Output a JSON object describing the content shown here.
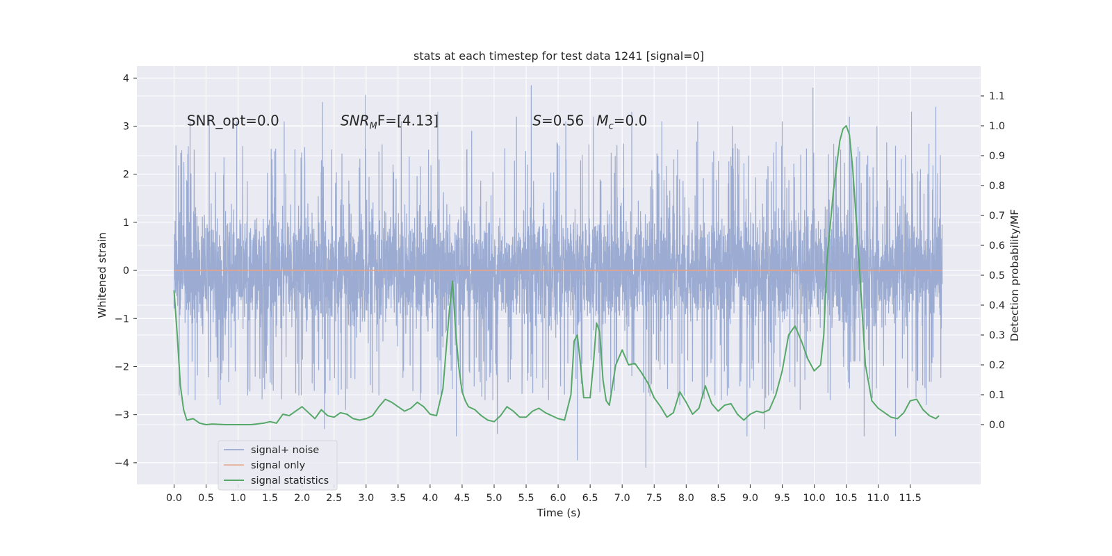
{
  "chart_data": {
    "type": "line",
    "title": "stats at each timestep for test data 1241 [signal=0]",
    "xlabel": "Time (s)",
    "ylabel": "Whitened strain",
    "ylabel_right": "Detection probability/MF",
    "xlim": [
      -0.58,
      12.6
    ],
    "ylim": [
      -4.45,
      4.25
    ],
    "ylim_right": [
      -0.2,
      1.2
    ],
    "x_ticks": [
      0.0,
      0.5,
      1.0,
      1.5,
      2.0,
      2.5,
      3.0,
      3.5,
      4.0,
      4.5,
      5.0,
      5.5,
      6.0,
      6.5,
      7.0,
      7.5,
      8.0,
      8.5,
      9.0,
      9.5,
      10.0,
      10.5,
      11.0,
      11.5
    ],
    "x_tick_labels": [
      "0.0",
      "0.5",
      "1.0",
      "1.5",
      "2.0",
      "2.5",
      "3.0",
      "3.5",
      "4.0",
      "4.5",
      "5.0",
      "5.5",
      "6.0",
      "6.5",
      "7.0",
      "7.5",
      "8.0",
      "8.5",
      "9.0",
      "9.5",
      "10.0",
      "10.5",
      "11.0",
      "11.5"
    ],
    "y_ticks": [
      -4,
      -3,
      -2,
      -1,
      0,
      1,
      2,
      3,
      4
    ],
    "y_tick_labels": [
      "−4",
      "−3",
      "−2",
      "−1",
      "0",
      "1",
      "2",
      "3",
      "4"
    ],
    "y_right_ticks": [
      0.0,
      0.1,
      0.2,
      0.3,
      0.4,
      0.5,
      0.6,
      0.7,
      0.8,
      0.9,
      1.0,
      1.1
    ],
    "y_right_tick_labels": [
      "0.0",
      "0.1",
      "0.2",
      "0.3",
      "0.4",
      "0.5",
      "0.6",
      "0.7",
      "0.8",
      "0.9",
      "1.0",
      "1.1"
    ],
    "grid": true,
    "legend_position": "lower-left",
    "annotations": [
      {
        "x": 0.2,
        "y": 3.0,
        "prefix": "SNR_opt=0.0",
        "italic": "",
        "sub": "",
        "rest": ""
      },
      {
        "x": 2.6,
        "y": 3.0,
        "prefix": "",
        "italic": "SNR",
        "sub": "M",
        "rest": "F=[4.13]"
      },
      {
        "x": 5.6,
        "y": 3.0,
        "prefix": "",
        "italic": "S",
        "sub": "",
        "rest": "=0.56"
      },
      {
        "x": 6.6,
        "y": 3.0,
        "prefix": "",
        "italic": "M",
        "sub": "c",
        "rest": "=0.0"
      }
    ],
    "series": [
      {
        "name": "signal+ noise",
        "color": "#8da0cb",
        "axis": "left",
        "x_range": [
          0.0,
          12.0
        ],
        "band_core": [
          -1.35,
          1.75
        ],
        "spikes": [
          {
            "x": 0.03,
            "y": 2.6
          },
          {
            "x": 0.08,
            "y": -2.6
          },
          {
            "x": 0.25,
            "y": 3.1
          },
          {
            "x": 0.33,
            "y": -2.7
          },
          {
            "x": 0.55,
            "y": 3.2
          },
          {
            "x": 0.72,
            "y": -2.8
          },
          {
            "x": 0.98,
            "y": 3.1
          },
          {
            "x": 1.15,
            "y": -2.6
          },
          {
            "x": 1.55,
            "y": -2.5
          },
          {
            "x": 1.72,
            "y": 3.1
          },
          {
            "x": 1.95,
            "y": -2.6
          },
          {
            "x": 2.32,
            "y": 3.5
          },
          {
            "x": 2.35,
            "y": -3.3
          },
          {
            "x": 2.68,
            "y": -2.9
          },
          {
            "x": 2.99,
            "y": 3.65
          },
          {
            "x": 3.2,
            "y": -2.6
          },
          {
            "x": 3.55,
            "y": 3.1
          },
          {
            "x": 3.85,
            "y": -2.7
          },
          {
            "x": 4.12,
            "y": 3.3
          },
          {
            "x": 4.41,
            "y": -3.45
          },
          {
            "x": 4.65,
            "y": 2.9
          },
          {
            "x": 4.98,
            "y": -2.7
          },
          {
            "x": 5.05,
            "y": -3.4
          },
          {
            "x": 5.35,
            "y": 3.2
          },
          {
            "x": 5.58,
            "y": 3.85
          },
          {
            "x": 5.85,
            "y": -2.7
          },
          {
            "x": 6.12,
            "y": 3.1
          },
          {
            "x": 6.3,
            "y": -3.95
          },
          {
            "x": 6.55,
            "y": 3.2
          },
          {
            "x": 6.88,
            "y": -2.5
          },
          {
            "x": 7.15,
            "y": 3.3
          },
          {
            "x": 7.37,
            "y": -4.1
          },
          {
            "x": 7.62,
            "y": 3.1
          },
          {
            "x": 7.9,
            "y": -2.8
          },
          {
            "x": 8.18,
            "y": 3.1
          },
          {
            "x": 8.45,
            "y": -2.6
          },
          {
            "x": 8.72,
            "y": 3.0
          },
          {
            "x": 8.95,
            "y": -3.45
          },
          {
            "x": 9.22,
            "y": -3.3
          },
          {
            "x": 9.5,
            "y": 3.1
          },
          {
            "x": 9.78,
            "y": -2.9
          },
          {
            "x": 9.98,
            "y": 3.8
          },
          {
            "x": 10.25,
            "y": -2.7
          },
          {
            "x": 10.55,
            "y": 3.2
          },
          {
            "x": 10.78,
            "y": -3.45
          },
          {
            "x": 10.98,
            "y": 3.0
          },
          {
            "x": 11.27,
            "y": -3.45
          },
          {
            "x": 11.52,
            "y": 3.3
          },
          {
            "x": 11.75,
            "y": -2.8
          },
          {
            "x": 11.9,
            "y": 3.4
          },
          {
            "x": 11.97,
            "y": 2.4
          }
        ]
      },
      {
        "name": "signal only",
        "color": "#e5a48a",
        "axis": "left",
        "x": [
          0.0,
          12.0
        ],
        "y": [
          0.0,
          0.0
        ]
      },
      {
        "name": "signal statistics",
        "color": "#55a868",
        "axis": "right",
        "x": [
          0.0,
          0.05,
          0.1,
          0.15,
          0.2,
          0.3,
          0.4,
          0.5,
          0.6,
          0.8,
          1.0,
          1.2,
          1.4,
          1.5,
          1.6,
          1.7,
          1.8,
          1.9,
          2.0,
          2.1,
          2.2,
          2.3,
          2.4,
          2.5,
          2.6,
          2.7,
          2.8,
          2.9,
          3.0,
          3.1,
          3.2,
          3.3,
          3.4,
          3.5,
          3.6,
          3.7,
          3.8,
          3.9,
          4.0,
          4.1,
          4.2,
          4.3,
          4.35,
          4.4,
          4.45,
          4.5,
          4.55,
          4.6,
          4.7,
          4.8,
          4.9,
          5.0,
          5.1,
          5.2,
          5.3,
          5.4,
          5.5,
          5.6,
          5.7,
          5.8,
          5.9,
          6.0,
          6.1,
          6.2,
          6.25,
          6.3,
          6.35,
          6.4,
          6.5,
          6.55,
          6.6,
          6.65,
          6.7,
          6.75,
          6.8,
          6.9,
          7.0,
          7.1,
          7.2,
          7.3,
          7.4,
          7.5,
          7.6,
          7.7,
          7.8,
          7.9,
          8.0,
          8.1,
          8.2,
          8.3,
          8.4,
          8.5,
          8.6,
          8.7,
          8.8,
          8.9,
          9.0,
          9.1,
          9.2,
          9.3,
          9.4,
          9.5,
          9.6,
          9.7,
          9.8,
          9.9,
          10.0,
          10.1,
          10.15,
          10.2,
          10.3,
          10.4,
          10.45,
          10.5,
          10.55,
          10.6,
          10.7,
          10.8,
          10.9,
          11.0,
          11.1,
          11.2,
          11.3,
          11.4,
          11.5,
          11.6,
          11.7,
          11.8,
          11.9,
          11.95
        ],
        "y": [
          0.45,
          0.3,
          0.13,
          0.05,
          0.015,
          0.02,
          0.005,
          0.0,
          0.002,
          0.0,
          0.0,
          0.0,
          0.005,
          0.01,
          0.005,
          0.035,
          0.03,
          0.045,
          0.06,
          0.04,
          0.02,
          0.05,
          0.03,
          0.025,
          0.04,
          0.035,
          0.02,
          0.015,
          0.02,
          0.03,
          0.06,
          0.085,
          0.075,
          0.06,
          0.045,
          0.055,
          0.075,
          0.06,
          0.035,
          0.03,
          0.12,
          0.38,
          0.48,
          0.31,
          0.19,
          0.11,
          0.08,
          0.06,
          0.05,
          0.03,
          0.015,
          0.01,
          0.03,
          0.06,
          0.045,
          0.025,
          0.025,
          0.045,
          0.055,
          0.04,
          0.03,
          0.02,
          0.015,
          0.1,
          0.28,
          0.3,
          0.2,
          0.09,
          0.09,
          0.2,
          0.34,
          0.31,
          0.15,
          0.08,
          0.065,
          0.2,
          0.25,
          0.2,
          0.205,
          0.175,
          0.14,
          0.09,
          0.06,
          0.025,
          0.04,
          0.11,
          0.075,
          0.035,
          0.055,
          0.13,
          0.07,
          0.045,
          0.065,
          0.07,
          0.035,
          0.015,
          0.035,
          0.045,
          0.04,
          0.05,
          0.1,
          0.18,
          0.3,
          0.33,
          0.28,
          0.22,
          0.18,
          0.2,
          0.3,
          0.55,
          0.78,
          0.95,
          0.99,
          1.0,
          0.97,
          0.86,
          0.55,
          0.2,
          0.08,
          0.055,
          0.04,
          0.025,
          0.02,
          0.04,
          0.08,
          0.085,
          0.05,
          0.03,
          0.02,
          0.03
        ]
      }
    ]
  }
}
